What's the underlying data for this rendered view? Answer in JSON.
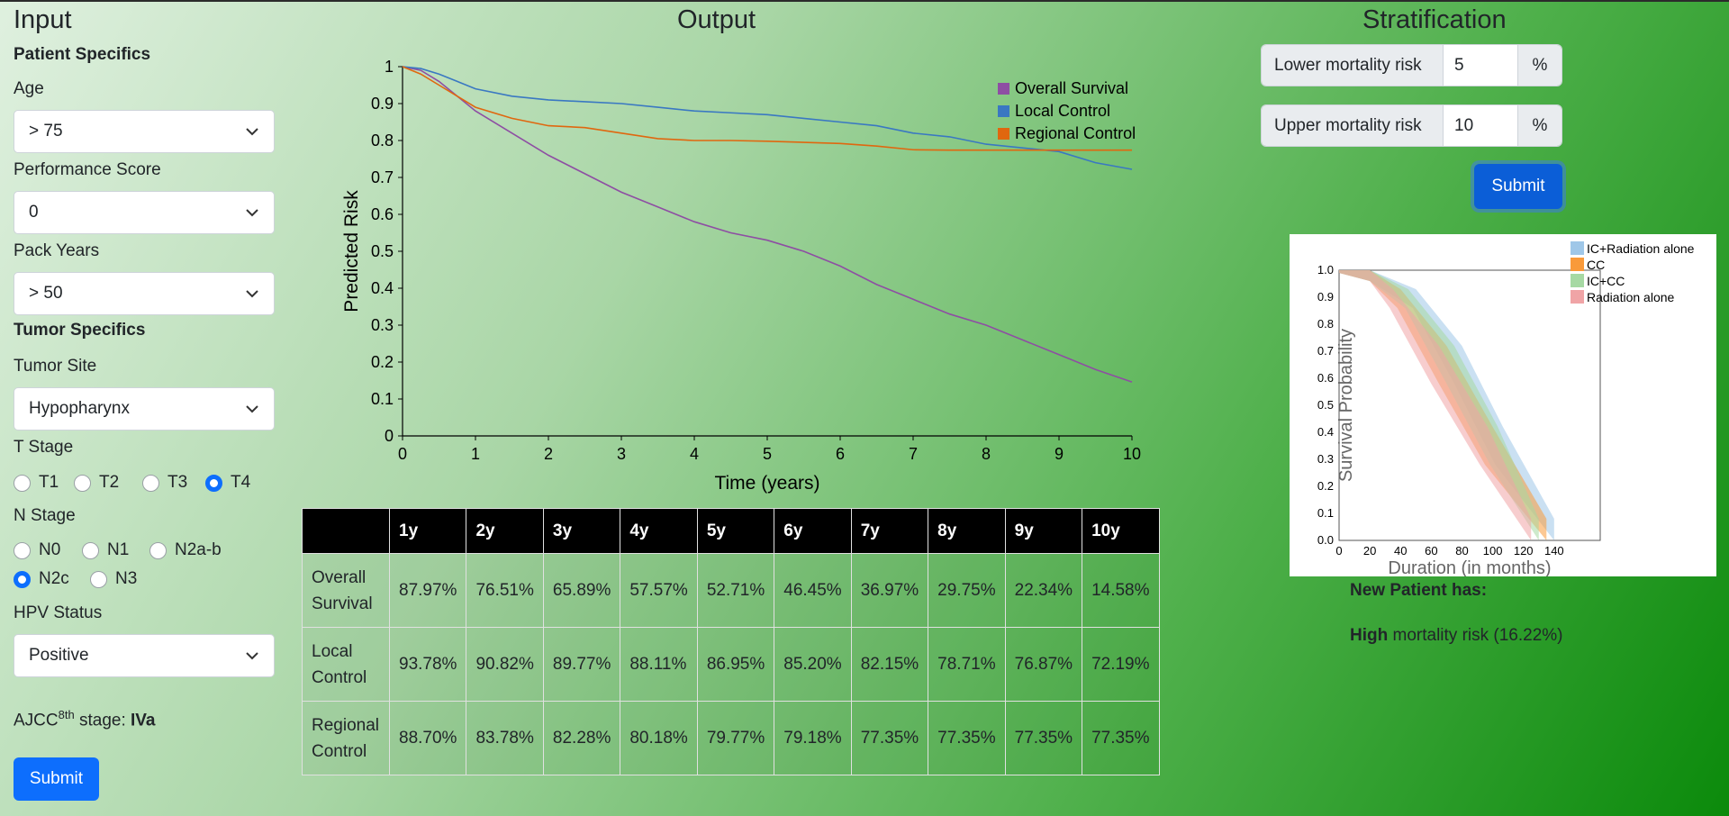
{
  "input": {
    "heading": "Input",
    "patient_specifics": "Patient Specifics",
    "age_label": "Age",
    "age_value": "> 75",
    "ps_label": "Performance Score",
    "ps_value": "0",
    "pack_label": "Pack Years",
    "pack_value": "> 50",
    "tumor_specifics": "Tumor Specifics",
    "site_label": "Tumor Site",
    "site_value": "Hypopharynx",
    "t_label": "T Stage",
    "t_options": [
      "T1",
      "T2",
      "T3",
      "T4"
    ],
    "t_selected": "T4",
    "n_label": "N Stage",
    "n_options": [
      "N0",
      "N1",
      "N2a-b",
      "N2c",
      "N3"
    ],
    "n_selected": "N2c",
    "hpv_label": "HPV Status",
    "hpv_value": "Positive",
    "ajcc_prefix": "AJCC",
    "ajcc_sup": "8th",
    "ajcc_mid": " stage: ",
    "ajcc_value": "IVa",
    "submit": "Submit"
  },
  "output": {
    "heading": "Output",
    "table": {
      "headers": [
        "",
        "1y",
        "2y",
        "3y",
        "4y",
        "5y",
        "6y",
        "7y",
        "8y",
        "9y",
        "10y"
      ],
      "rows": [
        {
          "label": "Overall Survival",
          "values": [
            "87.97%",
            "76.51%",
            "65.89%",
            "57.57%",
            "52.71%",
            "46.45%",
            "36.97%",
            "29.75%",
            "22.34%",
            "14.58%"
          ]
        },
        {
          "label": "Local Control",
          "values": [
            "93.78%",
            "90.82%",
            "89.77%",
            "88.11%",
            "86.95%",
            "85.20%",
            "82.15%",
            "78.71%",
            "76.87%",
            "72.19%"
          ]
        },
        {
          "label": "Regional Control",
          "values": [
            "88.70%",
            "83.78%",
            "82.28%",
            "80.18%",
            "79.77%",
            "79.18%",
            "77.35%",
            "77.35%",
            "77.35%",
            "77.35%"
          ]
        }
      ]
    }
  },
  "chart_data": {
    "type": "line",
    "xlabel": "Time (years)",
    "ylabel": "Predicted Risk",
    "xlim": [
      0,
      10
    ],
    "ylim": [
      0,
      1
    ],
    "xticks": [
      0,
      1,
      2,
      3,
      4,
      5,
      6,
      7,
      8,
      9,
      10
    ],
    "yticks": [
      0,
      0.1,
      0.2,
      0.3,
      0.4,
      0.5,
      0.6,
      0.7,
      0.8,
      0.9,
      1
    ],
    "legend": "top-right",
    "x": [
      0,
      0.25,
      0.5,
      1,
      1.5,
      2,
      2.5,
      3,
      3.5,
      4,
      4.5,
      5,
      5.5,
      6,
      6.5,
      7,
      7.5,
      8,
      8.5,
      9,
      9.5,
      10
    ],
    "series": [
      {
        "name": "Overall Survival",
        "color": "#8e4ea3",
        "values": [
          1,
          0.99,
          0.96,
          0.88,
          0.82,
          0.76,
          0.71,
          0.66,
          0.62,
          0.58,
          0.55,
          0.53,
          0.5,
          0.46,
          0.41,
          0.37,
          0.33,
          0.3,
          0.26,
          0.22,
          0.18,
          0.146
        ]
      },
      {
        "name": "Local Control",
        "color": "#3a78c2",
        "values": [
          1,
          0.995,
          0.98,
          0.94,
          0.92,
          0.91,
          0.905,
          0.9,
          0.89,
          0.88,
          0.875,
          0.87,
          0.86,
          0.85,
          0.84,
          0.82,
          0.81,
          0.79,
          0.78,
          0.77,
          0.74,
          0.722
        ]
      },
      {
        "name": "Regional Control",
        "color": "#e0670f",
        "values": [
          1,
          0.98,
          0.95,
          0.89,
          0.86,
          0.84,
          0.835,
          0.82,
          0.805,
          0.8,
          0.8,
          0.798,
          0.795,
          0.792,
          0.785,
          0.775,
          0.774,
          0.774,
          0.774,
          0.774,
          0.774,
          0.774
        ]
      }
    ]
  },
  "strat": {
    "heading": "Stratification",
    "lower_label": "Lower mortality risk",
    "lower_value": "5",
    "upper_label": "Upper mortality risk",
    "upper_value": "10",
    "unit": "%",
    "submit": "Submit",
    "km_ylabel": "Survival Probability",
    "km_xlabel": "Duration (in months)",
    "km_legend": [
      {
        "name": "IC+Radiation alone",
        "color": "#9fc7e8"
      },
      {
        "name": "CC",
        "color": "#f99a3a"
      },
      {
        "name": "IC+CC",
        "color": "#a6d9a3"
      },
      {
        "name": "Radiation alone",
        "color": "#f0a4a6"
      }
    ],
    "km_xticks": [
      "0",
      "20",
      "40",
      "60",
      "80",
      "100",
      "120",
      "140"
    ],
    "km_yticks": [
      "0.0",
      "0.1",
      "0.2",
      "0.3",
      "0.4",
      "0.5",
      "0.6",
      "0.7",
      "0.8",
      "0.9",
      "1.0"
    ],
    "result_heading": "New Patient has:",
    "result_level": "High",
    "result_text": " mortality risk (16.22%)"
  }
}
